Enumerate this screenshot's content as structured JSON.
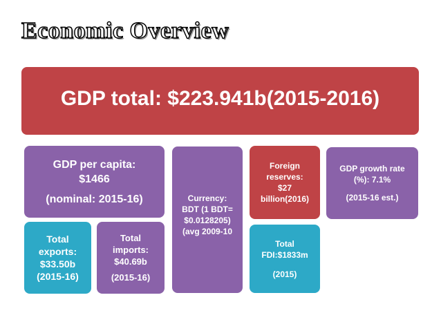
{
  "slide": {
    "title": "Economic Overview"
  },
  "boxes": {
    "gdp_total": "GDP total: $223.941b(2015-2016)",
    "per_capita": {
      "line1": "GDP per capita:",
      "line2": "$1466",
      "line3": "(nominal: 2015-16)"
    },
    "exports": {
      "line1": "Total",
      "line2": "exports:",
      "line3": "$33.50b",
      "line4": "(2015-16)"
    },
    "imports": {
      "line1": "Total",
      "line2": "imports:",
      "line3": "$40.69b",
      "line4": "(2015-16)"
    },
    "currency": {
      "line1": "Currency:",
      "line2": "BDT (1 BDT=",
      "line3": "$0.0128205)",
      "line4": "(avg 2009-10"
    },
    "reserves": {
      "line1": "Foreign",
      "line2": "reserves:",
      "line3": "$27",
      "line4": "billion(2016)"
    },
    "fdi": {
      "line1": "Total",
      "line2": "FDI:$1833m",
      "line3": "(2015)"
    },
    "growth": {
      "line1": "GDP growth rate",
      "line2": "(%): 7.1%",
      "line3": "(2015-16 est.)"
    }
  },
  "colors": {
    "red": "#bf4346",
    "purple": "#8a62a9",
    "teal": "#2da9c7"
  }
}
